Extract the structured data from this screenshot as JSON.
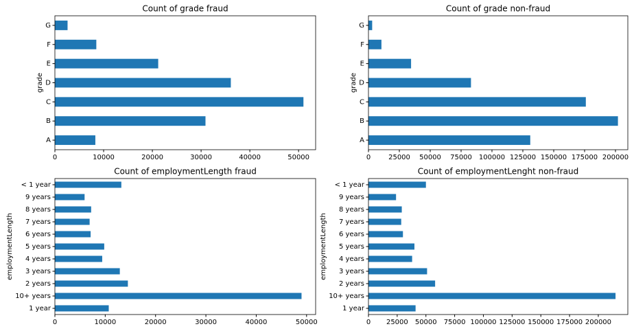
{
  "chart_data": [
    {
      "type": "bar",
      "orientation": "horizontal",
      "title": "Count of grade fraud",
      "ylabel": "grade",
      "categories": [
        "A",
        "B",
        "C",
        "D",
        "E",
        "F",
        "G"
      ],
      "values": [
        8300,
        30900,
        51000,
        36100,
        21200,
        8500,
        2600
      ],
      "color": "#1f77b4",
      "xlim": [
        0,
        53500
      ],
      "xticks": [
        0,
        10000,
        20000,
        30000,
        40000,
        50000
      ]
    },
    {
      "type": "bar",
      "orientation": "horizontal",
      "title": "Count of grade non-fraud",
      "ylabel": "grade",
      "categories": [
        "A",
        "B",
        "C",
        "D",
        "E",
        "F",
        "G"
      ],
      "values": [
        131000,
        202000,
        176000,
        83000,
        34500,
        10500,
        3000
      ],
      "color": "#1f77b4",
      "xlim": [
        0,
        210000
      ],
      "xticks": [
        0,
        25000,
        50000,
        75000,
        100000,
        125000,
        150000,
        175000,
        200000
      ]
    },
    {
      "type": "bar",
      "orientation": "horizontal",
      "title": "Count of employmentLength fraud",
      "ylabel": "employmentLength",
      "categories": [
        "1 year",
        "10+ years",
        "2 years",
        "3 years",
        "4 years",
        "5 years",
        "6 years",
        "7 years",
        "8 years",
        "9 years",
        "< 1 year"
      ],
      "values": [
        10700,
        49000,
        14500,
        12900,
        9400,
        9800,
        7100,
        6900,
        7200,
        5900,
        13200
      ],
      "color": "#1f77b4",
      "xlim": [
        0,
        51800
      ],
      "xticks": [
        0,
        10000,
        20000,
        30000,
        40000,
        50000
      ]
    },
    {
      "type": "bar",
      "orientation": "horizontal",
      "title": "Count of employmentLenght non-fraud",
      "ylabel": "employmentLength",
      "categories": [
        "1 year",
        "10+ years",
        "2 years",
        "3 years",
        "4 years",
        "5 years",
        "6 years",
        "7 years",
        "8 years",
        "9 years",
        "< 1 year"
      ],
      "values": [
        41000,
        215000,
        58000,
        51000,
        38000,
        40000,
        30000,
        28500,
        29000,
        24000,
        50000
      ],
      "color": "#1f77b4",
      "xlim": [
        0,
        225700
      ],
      "xticks": [
        0,
        25000,
        50000,
        75000,
        100000,
        125000,
        150000,
        175000,
        200000
      ]
    }
  ]
}
